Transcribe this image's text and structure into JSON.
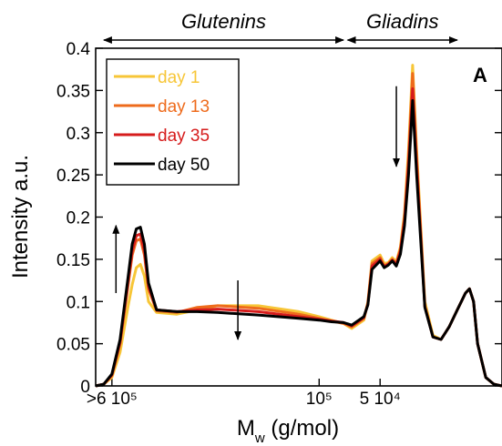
{
  "chart_data": {
    "type": "line",
    "panel_label": "A",
    "xlabel_main": "M",
    "xlabel_sub": "w",
    "xlabel_rest": " (g/mol)",
    "ylabel": "Intensity a.u.",
    "ylim": [
      0,
      0.4
    ],
    "xlim": [
      0,
      100
    ],
    "x_tick_labels": [
      {
        "label": ">6 10⁵",
        "at": 4
      },
      {
        "label": "10⁵",
        "at": 55
      },
      {
        "label": "5 10⁴",
        "at": 70
      }
    ],
    "y_ticks": [
      {
        "value": 0,
        "label": "0"
      },
      {
        "value": 0.05,
        "label": "0.05"
      },
      {
        "value": 0.1,
        "label": "0.1"
      },
      {
        "value": 0.15,
        "label": "0.15"
      },
      {
        "value": 0.2,
        "label": "0.2"
      },
      {
        "value": 0.25,
        "label": "0.25"
      },
      {
        "value": 0.3,
        "label": "0.3"
      },
      {
        "value": 0.35,
        "label": "0.35"
      },
      {
        "value": 0.4,
        "label": "0.4"
      }
    ],
    "regions": [
      {
        "label": "Glutenins",
        "from": 2,
        "to": 61
      },
      {
        "label": "Gliadins",
        "from": 62,
        "to": 89
      }
    ],
    "arrows": [
      {
        "x": 5,
        "from": 0.11,
        "to": 0.19
      },
      {
        "x": 35,
        "from": 0.125,
        "to": 0.055
      },
      {
        "x": 74,
        "from": 0.355,
        "to": 0.26
      }
    ],
    "legend_position": "top-left",
    "series": [
      {
        "name": "day 1",
        "color": "#f7c637",
        "x": [
          0,
          2,
          4,
          6,
          8,
          9,
          10,
          11,
          12,
          13,
          15,
          20,
          25,
          30,
          40,
          50,
          55,
          58,
          61,
          63,
          66,
          67,
          68,
          70,
          71,
          72,
          73,
          74,
          75,
          76,
          77,
          78,
          79,
          81,
          83,
          85,
          87,
          89,
          91,
          92,
          93,
          94,
          96,
          98,
          100
        ],
        "y": [
          0.0,
          0.002,
          0.01,
          0.04,
          0.095,
          0.12,
          0.14,
          0.144,
          0.13,
          0.1,
          0.087,
          0.085,
          0.09,
          0.095,
          0.095,
          0.088,
          0.082,
          0.078,
          0.074,
          0.068,
          0.078,
          0.1,
          0.148,
          0.155,
          0.145,
          0.146,
          0.152,
          0.147,
          0.165,
          0.205,
          0.28,
          0.38,
          0.28,
          0.1,
          0.06,
          0.055,
          0.07,
          0.09,
          0.11,
          0.115,
          0.1,
          0.05,
          0.01,
          0.002,
          0.0
        ]
      },
      {
        "name": "day 13",
        "color": "#ee6b1c",
        "x": [
          0,
          2,
          4,
          6,
          8,
          9,
          10,
          11,
          12,
          13,
          15,
          20,
          25,
          30,
          40,
          50,
          55,
          58,
          61,
          63,
          66,
          67,
          68,
          70,
          71,
          72,
          73,
          74,
          75,
          76,
          77,
          78,
          79,
          81,
          83,
          85,
          87,
          89,
          91,
          92,
          93,
          94,
          96,
          98,
          100
        ],
        "y": [
          0.0,
          0.002,
          0.012,
          0.05,
          0.12,
          0.155,
          0.172,
          0.174,
          0.155,
          0.115,
          0.089,
          0.087,
          0.093,
          0.095,
          0.092,
          0.085,
          0.08,
          0.077,
          0.074,
          0.07,
          0.08,
          0.098,
          0.145,
          0.152,
          0.142,
          0.145,
          0.15,
          0.145,
          0.162,
          0.2,
          0.27,
          0.37,
          0.27,
          0.095,
          0.058,
          0.055,
          0.07,
          0.09,
          0.11,
          0.115,
          0.1,
          0.05,
          0.01,
          0.002,
          0.0
        ]
      },
      {
        "name": "day 35",
        "color": "#d61c1c",
        "x": [
          0,
          2,
          4,
          6,
          8,
          9,
          10,
          11,
          12,
          13,
          15,
          20,
          25,
          30,
          40,
          50,
          55,
          58,
          61,
          63,
          66,
          67,
          68,
          70,
          71,
          72,
          73,
          74,
          75,
          76,
          77,
          78,
          79,
          81,
          83,
          85,
          87,
          89,
          91,
          92,
          93,
          94,
          96,
          98,
          100
        ],
        "y": [
          0.0,
          0.002,
          0.013,
          0.052,
          0.125,
          0.16,
          0.178,
          0.18,
          0.16,
          0.118,
          0.09,
          0.088,
          0.09,
          0.091,
          0.088,
          0.082,
          0.079,
          0.077,
          0.075,
          0.071,
          0.081,
          0.097,
          0.142,
          0.15,
          0.141,
          0.144,
          0.149,
          0.144,
          0.16,
          0.196,
          0.262,
          0.352,
          0.262,
          0.094,
          0.058,
          0.055,
          0.07,
          0.09,
          0.11,
          0.115,
          0.1,
          0.05,
          0.01,
          0.002,
          0.0
        ]
      },
      {
        "name": "day 50",
        "color": "#000000",
        "x": [
          0,
          2,
          4,
          6,
          8,
          9,
          10,
          11,
          12,
          13,
          15,
          20,
          25,
          30,
          40,
          50,
          55,
          58,
          61,
          63,
          66,
          67,
          68,
          70,
          71,
          72,
          73,
          74,
          75,
          76,
          77,
          78,
          79,
          81,
          83,
          85,
          87,
          89,
          91,
          92,
          93,
          94,
          96,
          98,
          100
        ],
        "y": [
          0.0,
          0.002,
          0.014,
          0.055,
          0.13,
          0.168,
          0.186,
          0.188,
          0.168,
          0.122,
          0.09,
          0.088,
          0.088,
          0.087,
          0.084,
          0.08,
          0.078,
          0.076,
          0.075,
          0.072,
          0.082,
          0.096,
          0.138,
          0.148,
          0.14,
          0.143,
          0.148,
          0.142,
          0.156,
          0.19,
          0.25,
          0.338,
          0.25,
          0.093,
          0.058,
          0.055,
          0.07,
          0.09,
          0.11,
          0.115,
          0.1,
          0.05,
          0.01,
          0.002,
          0.0
        ]
      }
    ]
  }
}
